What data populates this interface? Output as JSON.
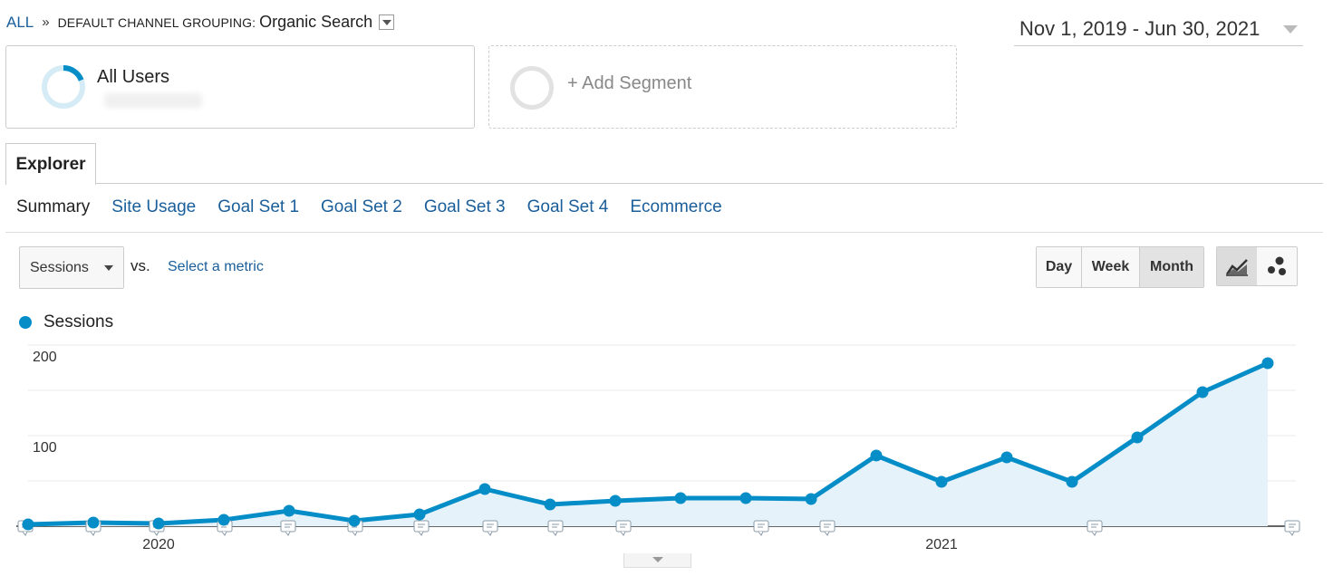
{
  "breadcrumb": {
    "root": "ALL",
    "separator": "»",
    "grouping": "DEFAULT CHANNEL GROUPING:",
    "value": "Organic Search"
  },
  "date_range": "Nov 1, 2019 - Jun 30, 2021",
  "segments": {
    "primary": "All Users",
    "add": "+ Add Segment"
  },
  "tabs": {
    "explorer": "Explorer"
  },
  "subtabs": [
    "Summary",
    "Site Usage",
    "Goal Set 1",
    "Goal Set 2",
    "Goal Set 3",
    "Goal Set 4",
    "Ecommerce"
  ],
  "metric": {
    "primary": "Sessions",
    "vs": "vs.",
    "select_metric": "Select a metric"
  },
  "granularity": [
    "Day",
    "Week",
    "Month"
  ],
  "granularity_selected": "Month",
  "chart_types": [
    "line-chart-icon",
    "motion-chart-icon"
  ],
  "colors": {
    "series": "#058dc7",
    "area": "#e5f2f9",
    "link": "#1a5e9a"
  },
  "chart_data": {
    "type": "area",
    "legend": [
      "Sessions"
    ],
    "y_ticks": [
      "200",
      "100"
    ],
    "x_labels": [
      "2020",
      "2021"
    ],
    "ylim": [
      0,
      200
    ],
    "series": [
      {
        "name": "Sessions",
        "x": [
          "2019-11",
          "2019-12",
          "2020-01",
          "2020-02",
          "2020-03",
          "2020-04",
          "2020-05",
          "2020-06",
          "2020-07",
          "2020-08",
          "2020-09",
          "2020-10",
          "2020-11",
          "2020-12",
          "2021-01",
          "2021-02",
          "2021-03",
          "2021-04",
          "2021-05",
          "2021-06"
        ],
        "values": [
          2,
          4,
          3,
          7,
          17,
          6,
          13,
          41,
          24,
          28,
          31,
          31,
          30,
          78,
          49,
          76,
          49,
          98,
          148,
          180
        ]
      }
    ]
  }
}
